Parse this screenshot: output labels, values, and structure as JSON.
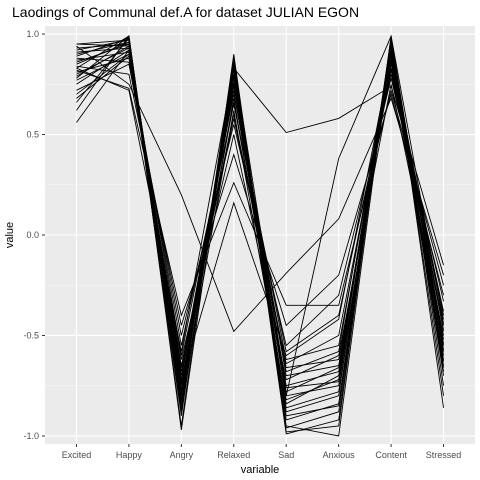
{
  "chart_data": {
    "type": "line",
    "title": "Laodings of Communal def.A for dataset JULIAN EGON",
    "xlabel": "variable",
    "ylabel": "value",
    "categories": [
      "Excited",
      "Happy",
      "Angry",
      "Relaxed",
      "Sad",
      "Anxious",
      "Content",
      "Stressed"
    ],
    "ylim": [
      -1.04,
      1.04
    ],
    "yticks": [
      1.0,
      0.5,
      0.0,
      -0.5,
      -1.0
    ],
    "ytick_labels": [
      "1.0",
      "0.5",
      "0.0",
      "-0.5",
      "-1.0"
    ],
    "grid": true,
    "legend": "none",
    "colors": {
      "panel": "#ebebeb",
      "grid_major": "#ffffff",
      "grid_minor": "#f5f5f5",
      "line": "#000000"
    },
    "series": [
      {
        "values": [
          0.95,
          0.97,
          -0.78,
          0.82,
          -0.82,
          -0.72,
          0.96,
          -0.55
        ]
      },
      {
        "values": [
          0.93,
          0.95,
          -0.72,
          0.78,
          -0.75,
          -0.68,
          0.93,
          -0.48
        ]
      },
      {
        "values": [
          0.91,
          0.93,
          -0.68,
          0.75,
          -0.7,
          -0.65,
          0.9,
          -0.52
        ]
      },
      {
        "values": [
          0.89,
          0.98,
          -0.82,
          0.85,
          -0.88,
          -0.8,
          0.98,
          -0.6
        ]
      },
      {
        "values": [
          0.87,
          0.91,
          -0.6,
          0.7,
          -0.62,
          -0.55,
          0.85,
          -0.42
        ]
      },
      {
        "values": [
          0.85,
          0.96,
          -0.75,
          0.8,
          -0.95,
          -1.0,
          0.95,
          -0.65
        ]
      },
      {
        "values": [
          0.83,
          0.99,
          -0.85,
          0.88,
          -0.98,
          -0.95,
          0.97,
          -0.7
        ]
      },
      {
        "values": [
          0.81,
          0.88,
          -0.55,
          0.65,
          -0.58,
          -0.4,
          0.8,
          -0.38
        ]
      },
      {
        "values": [
          0.79,
          0.94,
          -0.7,
          0.72,
          -0.8,
          -0.75,
          0.88,
          -0.58
        ]
      },
      {
        "values": [
          0.77,
          0.9,
          -0.65,
          0.6,
          -0.66,
          -0.62,
          0.83,
          -0.45
        ]
      },
      {
        "values": [
          0.75,
          0.92,
          -0.8,
          0.76,
          -0.9,
          -0.85,
          0.92,
          -0.62
        ]
      },
      {
        "values": [
          0.72,
          0.85,
          -0.5,
          0.55,
          -0.55,
          -0.3,
          0.78,
          -0.33
        ]
      },
      {
        "values": [
          0.92,
          0.97,
          -0.88,
          0.84,
          -0.99,
          -0.92,
          0.99,
          -0.75
        ]
      },
      {
        "values": [
          0.88,
          0.86,
          -0.62,
          0.5,
          -0.72,
          -0.6,
          0.75,
          -0.5
        ]
      },
      {
        "values": [
          0.86,
          0.95,
          -0.77,
          0.68,
          -0.84,
          -0.7,
          0.94,
          -0.57
        ]
      },
      {
        "values": [
          0.84,
          0.8,
          -0.45,
          0.4,
          -0.45,
          -0.2,
          0.7,
          -0.3
        ]
      },
      {
        "values": [
          0.8,
          0.93,
          -0.9,
          0.86,
          -0.78,
          -0.66,
          0.91,
          -0.68
        ]
      },
      {
        "values": [
          0.66,
          0.98,
          -0.95,
          0.9,
          -0.96,
          -0.88,
          0.96,
          -0.8
        ]
      },
      {
        "values": [
          0.62,
          0.99,
          -0.97,
          0.83,
          -0.92,
          -0.84,
          0.97,
          -0.86
        ]
      },
      {
        "values": [
          0.56,
          0.92,
          -0.83,
          0.62,
          -0.86,
          -0.78,
          0.87,
          -0.63
        ]
      },
      {
        "values": [
          0.68,
          0.89,
          -0.66,
          0.58,
          -0.64,
          -0.5,
          0.82,
          -0.47
        ]
      },
      {
        "values": [
          0.82,
          0.73,
          -0.4,
          0.26,
          -0.35,
          -0.35,
          0.72,
          -0.25
        ]
      },
      {
        "values": [
          0.9,
          0.96,
          -0.73,
          0.16,
          -0.6,
          -0.42,
          0.89,
          -0.4
        ]
      },
      {
        "values": [
          0.94,
          0.75,
          0.2,
          -0.48,
          -0.19,
          0.08,
          0.68,
          -0.2
        ]
      },
      {
        "values": [
          0.83,
          0.72,
          -0.58,
          0.83,
          0.51,
          0.58,
          0.74,
          -0.15
        ]
      },
      {
        "values": [
          0.78,
          0.99,
          -0.87,
          0.79,
          -0.8,
          0.38,
          0.99,
          -0.44
        ]
      },
      {
        "values": [
          0.95,
          0.94,
          -0.79,
          0.74,
          -0.68,
          -0.58,
          0.93,
          -0.54
        ]
      },
      {
        "values": [
          0.7,
          0.9,
          -0.74,
          0.66,
          -0.76,
          -0.73,
          0.86,
          -0.66
        ]
      }
    ]
  }
}
